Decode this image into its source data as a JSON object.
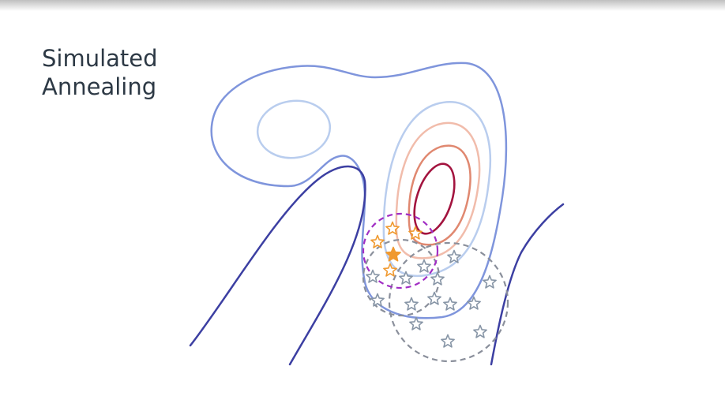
{
  "slide": {
    "title_line1": "Simulated",
    "title_line2": "Annealing"
  },
  "colors": {
    "title": "#2d3945",
    "contour_outer": "#7f95dc",
    "contour_light": "#b9cdee",
    "contour_dark": "#3c3fa2",
    "contour_salmon_light": "#f1bcab",
    "contour_salmon": "#e08870",
    "contour_core": "#a3143f",
    "selected_region": "#a12ec4",
    "search_region": "#8a8f9b",
    "star_selected": "#f0992f",
    "star_candidate": "#8795a6"
  },
  "icons": {
    "selected_star": "star-icon",
    "candidate_star": "star-icon"
  }
}
